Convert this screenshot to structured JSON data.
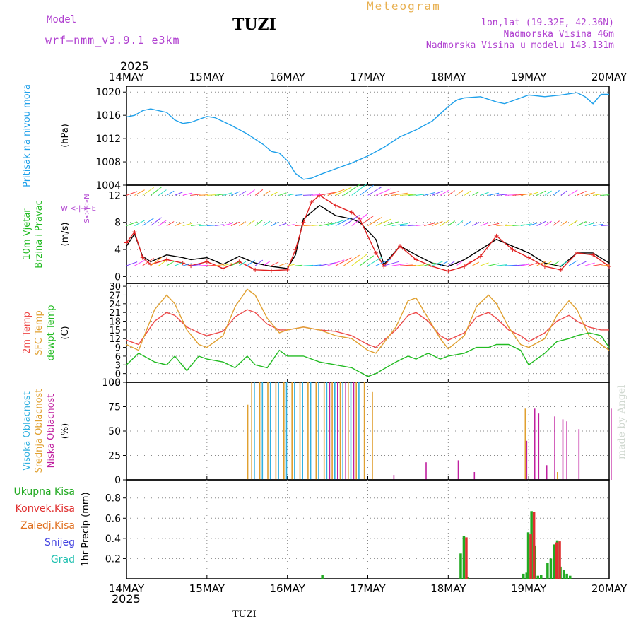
{
  "header": {
    "model_label": "Model",
    "model_name": "wrf—nmm_v3.9.1 e3km",
    "station": "TUZI",
    "title": "Meteogram",
    "lonlat": "lon,lat (19.32E, 42.36N)",
    "elevation": "Nadmorska Visina 46m",
    "model_elevation": "Nadmorska Visina u modelu 143.131m",
    "year": "2025",
    "credit": "made by Angel"
  },
  "footer": {
    "station": "TUZI"
  },
  "colors": {
    "pressure": "#1ea0ea",
    "wind_speed": "#000000",
    "gust": "#e02020",
    "temp2m": "#ee4a4a",
    "sfc_temp": "#e0a030",
    "dewpoint": "#22bb22",
    "cloud_high": "#30b0e0",
    "cloud_mid": "#e0a030",
    "cloud_low": "#c020a0",
    "precip_total": "#22aa22",
    "precip_conv": "#e03030",
    "header_purple": "#b040d0",
    "title_gold": "#e8b050"
  },
  "chart_data": [
    {
      "type": "line",
      "id": "pressure",
      "ylabel_left": "Pritisak na nivou mora",
      "ylabel_unit": "(hPa)",
      "x_ticks": [
        "14MAY",
        "15MAY",
        "16MAY",
        "17MAY",
        "18MAY",
        "19MAY",
        "20MAY"
      ],
      "x_range_days": [
        0,
        6
      ],
      "ylim": [
        1004,
        1021
      ],
      "yticks": [
        1004,
        1008,
        1012,
        1016,
        1020
      ],
      "series": [
        {
          "name": "Pressure MSL",
          "x": [
            0,
            0.1,
            0.2,
            0.3,
            0.5,
            0.6,
            0.7,
            0.8,
            1.0,
            1.1,
            1.3,
            1.5,
            1.7,
            1.8,
            1.9,
            2.0,
            2.1,
            2.2,
            2.3,
            2.4,
            2.6,
            2.8,
            3.0,
            3.2,
            3.4,
            3.6,
            3.8,
            4.0,
            4.1,
            4.2,
            4.4,
            4.6,
            4.7,
            4.8,
            5.0,
            5.2,
            5.4,
            5.6,
            5.7,
            5.8,
            5.9,
            6.0
          ],
          "y": [
            1015.7,
            1016,
            1016.8,
            1017.1,
            1016.5,
            1015.2,
            1014.6,
            1014.8,
            1015.8,
            1015.6,
            1014.3,
            1012.8,
            1011,
            1009.8,
            1009.5,
            1008.2,
            1006,
            1005,
            1005.2,
            1005.8,
            1006.8,
            1007.8,
            1009,
            1010.5,
            1012.3,
            1013.5,
            1015,
            1017.5,
            1018.6,
            1019,
            1019.2,
            1018.3,
            1018,
            1018.5,
            1019.5,
            1019.2,
            1019.5,
            1019.9,
            1019.2,
            1018,
            1019.6,
            1019.6
          ]
        }
      ]
    },
    {
      "type": "line",
      "id": "wind",
      "ylabel_left": "10m Vjetar",
      "ylabel_left2": "Brzina i Pravac",
      "ylabel_unit": "(m/s)",
      "compass_hint": "W <-|-> E",
      "compass_vertical": "S<-|->N",
      "ylim": [
        -1,
        13.5
      ],
      "yticks": [
        0,
        4,
        8,
        12
      ],
      "series": [
        {
          "name": "Wind speed",
          "x": [
            0,
            0.1,
            0.2,
            0.3,
            0.5,
            0.7,
            0.8,
            1.0,
            1.2,
            1.4,
            1.6,
            1.8,
            2.0,
            2.1,
            2.2,
            2.3,
            2.4,
            2.6,
            2.8,
            2.9,
            3.1,
            3.2,
            3.4,
            3.6,
            3.8,
            4.0,
            4.2,
            4.4,
            4.6,
            4.8,
            5.0,
            5.2,
            5.4,
            5.6,
            5.8,
            6.0
          ],
          "y": [
            4.5,
            6.3,
            3.0,
            2.2,
            3.2,
            2.8,
            2.5,
            2.8,
            1.8,
            3.0,
            2.0,
            1.5,
            1.2,
            3.2,
            8.5,
            9.5,
            10.5,
            9.0,
            8.5,
            8.0,
            5.5,
            1.8,
            4.5,
            3.2,
            2.0,
            1.5,
            2.5,
            4.0,
            5.5,
            4.5,
            3.5,
            2.0,
            1.5,
            3.5,
            3.5,
            2.0
          ]
        },
        {
          "name": "Gust",
          "x": [
            0,
            0.1,
            0.2,
            0.3,
            0.5,
            0.7,
            0.8,
            1.0,
            1.2,
            1.4,
            1.6,
            1.8,
            2.0,
            2.1,
            2.2,
            2.3,
            2.4,
            2.6,
            2.8,
            2.9,
            3.1,
            3.2,
            3.4,
            3.6,
            3.8,
            4.0,
            4.2,
            4.4,
            4.6,
            4.8,
            5.0,
            5.2,
            5.4,
            5.6,
            5.8,
            6.0
          ],
          "y": [
            5.0,
            6.6,
            2.8,
            1.8,
            2.5,
            2.0,
            1.6,
            2.2,
            1.2,
            2.2,
            1.0,
            0.9,
            1.0,
            4.0,
            8.0,
            11.0,
            12.0,
            10.5,
            9.5,
            8.5,
            3.5,
            1.5,
            4.5,
            2.5,
            1.5,
            0.8,
            1.5,
            3.0,
            6.0,
            4.0,
            2.8,
            1.5,
            1.0,
            3.5,
            3.2,
            1.5
          ]
        }
      ]
    },
    {
      "type": "line",
      "id": "temperature",
      "ylabel_left": "2m Temp",
      "ylabel_left2": "SFC Temp",
      "ylabel_left3": "dewpt Temp",
      "ylabel_unit": "(C)",
      "ylim": [
        -3,
        31
      ],
      "yticks": [
        -3,
        0,
        3,
        6,
        9,
        12,
        15,
        18,
        21,
        24,
        27,
        30
      ],
      "series": [
        {
          "name": "2m Temp",
          "x": [
            0,
            0.15,
            0.35,
            0.5,
            0.6,
            0.75,
            0.9,
            1.0,
            1.2,
            1.35,
            1.5,
            1.6,
            1.75,
            1.9,
            2.0,
            2.2,
            2.4,
            2.6,
            2.8,
            3.0,
            3.1,
            3.35,
            3.5,
            3.6,
            3.75,
            3.9,
            4.0,
            4.2,
            4.35,
            4.5,
            4.6,
            4.75,
            4.9,
            5.0,
            5.2,
            5.35,
            5.5,
            5.6,
            5.75,
            5.9,
            6.0
          ],
          "y": [
            11.5,
            10,
            18,
            21,
            20,
            16,
            14,
            13,
            14.5,
            19.5,
            22,
            21,
            17,
            15,
            15,
            16,
            15,
            14.5,
            13,
            10,
            9,
            15,
            20,
            21,
            18,
            13,
            11.5,
            14,
            19.5,
            21,
            19,
            15,
            13,
            11,
            14,
            18,
            20,
            18,
            16,
            15,
            15
          ]
        },
        {
          "name": "SFC Temp",
          "x": [
            0,
            0.15,
            0.35,
            0.5,
            0.6,
            0.75,
            0.9,
            1.0,
            1.2,
            1.35,
            1.5,
            1.6,
            1.75,
            1.9,
            2.0,
            2.2,
            2.4,
            2.6,
            2.8,
            3.0,
            3.1,
            3.35,
            3.5,
            3.6,
            3.75,
            3.9,
            4.0,
            4.2,
            4.35,
            4.5,
            4.6,
            4.75,
            4.9,
            5.0,
            5.2,
            5.35,
            5.5,
            5.6,
            5.75,
            5.9,
            6.0
          ],
          "y": [
            10,
            8,
            22,
            27,
            24,
            15,
            10,
            9,
            13,
            23,
            29,
            27,
            19,
            14,
            15,
            16,
            15,
            13,
            12,
            8,
            7,
            16,
            25,
            26,
            19,
            12,
            8.5,
            13,
            23,
            27,
            24,
            16,
            10,
            9,
            12,
            20,
            25,
            22,
            13,
            10,
            8
          ]
        },
        {
          "name": "Dewpoint",
          "x": [
            0,
            0.15,
            0.35,
            0.5,
            0.6,
            0.75,
            0.9,
            1.0,
            1.2,
            1.35,
            1.5,
            1.6,
            1.75,
            1.9,
            2.0,
            2.2,
            2.4,
            2.6,
            2.8,
            3.0,
            3.1,
            3.35,
            3.5,
            3.6,
            3.75,
            3.9,
            4.0,
            4.2,
            4.35,
            4.5,
            4.6,
            4.75,
            4.9,
            5.0,
            5.2,
            5.35,
            5.5,
            5.6,
            5.75,
            5.9,
            6.0
          ],
          "y": [
            3,
            7,
            4,
            3,
            6,
            1,
            6,
            5,
            4,
            2,
            6,
            3,
            2,
            8,
            6,
            6,
            4,
            3,
            2,
            -1,
            0,
            4,
            6,
            5,
            7,
            5,
            6,
            7,
            9,
            9,
            10,
            10,
            8,
            3,
            7,
            11,
            12,
            13,
            14,
            13,
            9
          ]
        }
      ]
    },
    {
      "type": "bar",
      "id": "clouds",
      "ylabel_left": "Visoka Oblacnost",
      "ylabel_left2": "Srednja Oblacnost",
      "ylabel_left3": "Niska Oblacnost",
      "ylabel_unit": "(%)",
      "ylim": [
        0,
        100
      ],
      "yticks": [
        0,
        25,
        50,
        75,
        100
      ],
      "series": [
        {
          "name": "High cloud",
          "x": [
            1.6,
            1.7,
            1.8,
            1.9,
            2.0,
            2.1,
            2.2,
            2.3,
            2.4,
            2.5,
            2.6,
            2.7,
            2.8,
            2.9
          ],
          "values": [
            100,
            100,
            100,
            100,
            100,
            100,
            100,
            100,
            100,
            100,
            100,
            100,
            100,
            100
          ]
        },
        {
          "name": "Mid cloud",
          "x": [
            1.5,
            1.55,
            1.65,
            1.75,
            1.85,
            1.95,
            2.05,
            2.15,
            2.25,
            2.35,
            2.45,
            2.55,
            2.65,
            2.75,
            2.85,
            2.95,
            3.05,
            4.95,
            5.35
          ],
          "values": [
            77,
            100,
            100,
            100,
            100,
            100,
            100,
            100,
            100,
            100,
            100,
            100,
            100,
            100,
            100,
            100,
            90,
            73,
            8
          ]
        },
        {
          "name": "Low cloud",
          "x": [
            2.5,
            2.6,
            2.7,
            2.8,
            3.3,
            3.7,
            4.1,
            4.3,
            4.95,
            5.05,
            5.1,
            5.2,
            5.3,
            5.4,
            5.45,
            5.6,
            6.0
          ],
          "values": [
            100,
            100,
            100,
            100,
            5,
            18,
            20,
            8,
            40,
            73,
            68,
            15,
            65,
            62,
            60,
            52,
            73
          ]
        }
      ]
    },
    {
      "type": "bar",
      "id": "precip",
      "ylabel_left": "Ukupna Kisa",
      "ylabel_left2": "Konvek.Kisa",
      "ylabel_left3": "Zaledj.Kisa",
      "ylabel_left4": "Snijeg",
      "ylabel_left5": "Grad",
      "ylabel_unit": "1hr Precip (mm)",
      "ylim": [
        0,
        0.98
      ],
      "yticks": [
        0.2,
        0.4,
        0.6,
        0.8
      ],
      "series": [
        {
          "name": "Total rain",
          "x": [
            2.45,
            4.17,
            4.21,
            4.25,
            4.95,
            4.99,
            5.01,
            5.05,
            5.09,
            5.13,
            5.17,
            5.25,
            5.29,
            5.33,
            5.37,
            5.41,
            5.45,
            5.49,
            5.53
          ],
          "values": [
            0.04,
            0.25,
            0.42,
            0.02,
            0.05,
            0.06,
            0.46,
            0.67,
            0.33,
            0.03,
            0.04,
            0.16,
            0.2,
            0.34,
            0.38,
            0.12,
            0.09,
            0.05,
            0.03
          ]
        },
        {
          "name": "Convective rain",
          "x": [
            4.21,
            5.01,
            5.05,
            5.33,
            5.37
          ],
          "values": [
            0.41,
            0.44,
            0.66,
            0.36,
            0.37
          ]
        }
      ]
    }
  ]
}
